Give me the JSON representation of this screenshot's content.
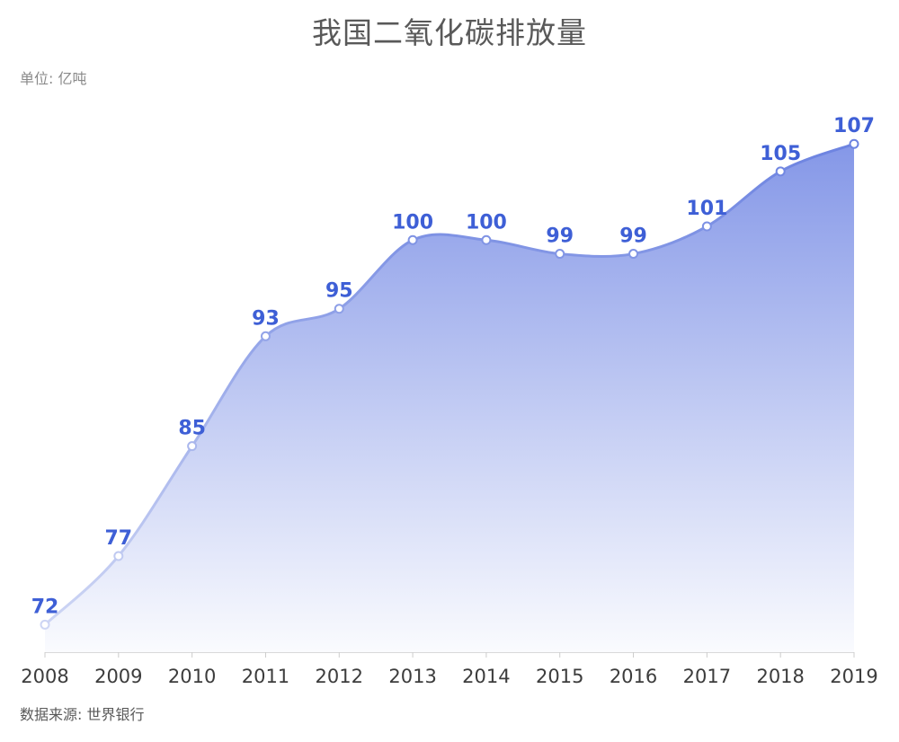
{
  "chart_data": {
    "type": "area",
    "title": "我国二氧化碳排放量",
    "unit_label": "单位: 亿吨",
    "source_label": "数据来源: 世界银行",
    "categories": [
      "2008",
      "2009",
      "2010",
      "2011",
      "2012",
      "2013",
      "2014",
      "2015",
      "2016",
      "2017",
      "2018",
      "2019"
    ],
    "values": [
      72,
      77,
      85,
      93,
      95,
      100,
      100,
      99,
      99,
      101,
      105,
      107
    ],
    "ylim": [
      70,
      107.8
    ],
    "smooth": true,
    "point_labels_visible": true,
    "gridlines": false,
    "legend": false,
    "colors": {
      "label": "#3E5FD6",
      "line_top": "#6A81E0",
      "line_bottom": "#D3DAF5",
      "area_top": "#8295E7",
      "area_bottom": "#FAFBFE",
      "axis_line": "#D9D9D9",
      "tick": "#CCCCCC",
      "x_label": "#3C3C3C",
      "marker_fill": "#FFFFFF"
    }
  }
}
